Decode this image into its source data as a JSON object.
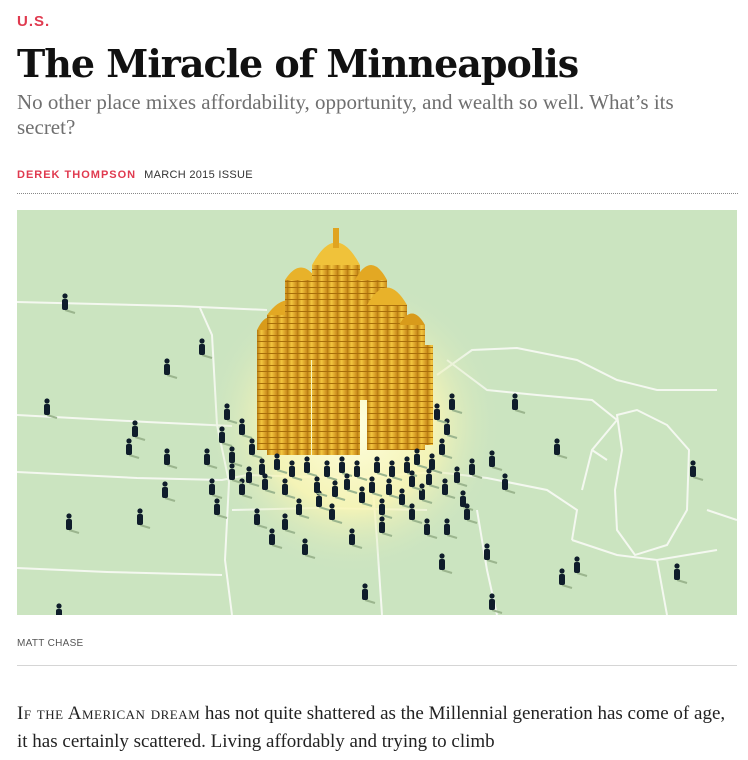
{
  "section": "U.S.",
  "title": "The Miracle of Minneapolis",
  "subtitle": "No other place mixes affordability, opportunity, and wealth so well. What’s its secret?",
  "byline": {
    "author": "DEREK THOMPSON",
    "issue": "MARCH 2015 ISSUE"
  },
  "image_credit": "MATT CHASE",
  "body": {
    "lead_smallcaps": "If the American dream",
    "text": " has not quite shattered as the Millennial generation has come of age, it has certainly scattered. Living affordably and trying to climb"
  },
  "colors": {
    "accent": "#e03a4f",
    "map_bg": "#cbe4c0",
    "gold": "#e7aa1f",
    "figures": "#0f1d2b"
  }
}
